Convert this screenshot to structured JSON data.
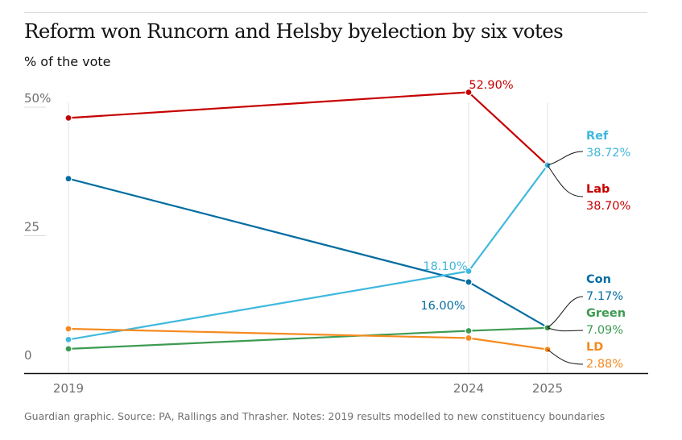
{
  "header": {
    "title": "Reform won Runcorn and Helsby byelection by six votes",
    "subtitle": "% of the vote"
  },
  "footer": {
    "source": "Guardian graphic. Source: PA, Rallings and Thrasher. Notes: 2019 results modelled to new constituency boundaries"
  },
  "chart_data": {
    "type": "line",
    "title": "Reform won Runcorn and Helsby byelection by six votes",
    "subtitle": "% of the vote",
    "x": [
      2019,
      2024,
      2025
    ],
    "x_tick_labels": [
      "2019",
      "2024",
      "2025"
    ],
    "y_ticks": [
      0,
      25,
      50
    ],
    "y_tick_labels": [
      "0",
      "25",
      "50%"
    ],
    "ylim": [
      0,
      53
    ],
    "grid": "vertical lines at each election year",
    "series": [
      {
        "name": "Lab",
        "color": "#c70000",
        "values": [
          47.9,
          52.9,
          38.7
        ],
        "end_label": "38.70%",
        "data_label": "52.90%"
      },
      {
        "name": "Con",
        "color": "#056da1",
        "values": [
          36.1,
          16.0,
          7.17
        ],
        "end_label": "7.17%",
        "data_label": "16.00%"
      },
      {
        "name": "Ref",
        "color": "#3fb8dd",
        "values": [
          4.8,
          18.1,
          38.72
        ],
        "end_label": "38.72%",
        "data_label": "18.10%"
      },
      {
        "name": "Green",
        "color": "#3c9b52",
        "values": [
          3.0,
          6.5,
          7.09
        ],
        "end_label": "7.09%"
      },
      {
        "name": "LD",
        "color": "#f58a1f",
        "values": [
          6.9,
          5.1,
          2.88
        ],
        "end_label": "2.88%"
      }
    ]
  }
}
